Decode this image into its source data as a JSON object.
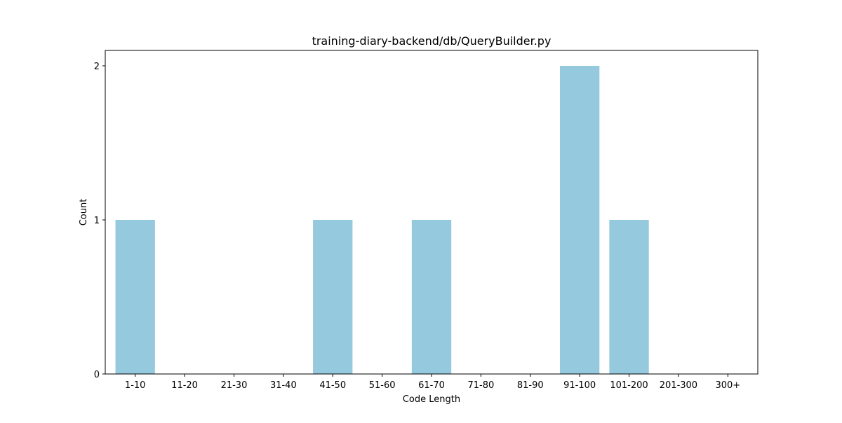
{
  "chart_data": {
    "type": "bar",
    "title": "training-diary-backend/db/QueryBuilder.py",
    "xlabel": "Code Length",
    "ylabel": "Count",
    "categories": [
      "1-10",
      "11-20",
      "21-30",
      "31-40",
      "41-50",
      "51-60",
      "61-70",
      "71-80",
      "81-90",
      "91-100",
      "101-200",
      "201-300",
      "300+"
    ],
    "values": [
      1,
      0,
      0,
      0,
      1,
      0,
      1,
      0,
      0,
      2,
      1,
      0,
      0
    ],
    "ylim": [
      0,
      2.1
    ],
    "yticks": [
      0,
      1,
      2
    ],
    "grid": false,
    "legend": "none",
    "bar_color": "#95c9dd"
  }
}
